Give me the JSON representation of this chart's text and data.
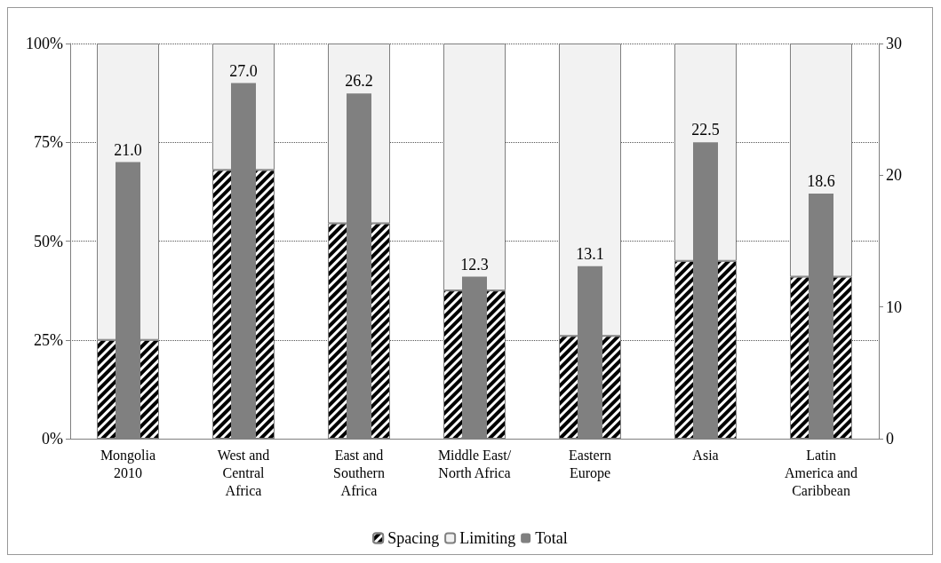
{
  "chart_data": {
    "type": "bar",
    "stacked": true,
    "categories": [
      "Mongolia\n2010",
      "West and\nCentral\nAfrica",
      "East and\nSouthern\nAfrica",
      "Middle East/\nNorth Africa",
      "Eastern\nEurope",
      "Asia",
      "Latin\nAmerica and\nCaribbean"
    ],
    "series": [
      {
        "name": "Spacing",
        "color": "#000000",
        "values": [
          25,
          68,
          54.5,
          37.5,
          26,
          45,
          41
        ]
      },
      {
        "name": "Limiting",
        "color": "#f2f2f2",
        "values": [
          75,
          32,
          45.5,
          62.5,
          74,
          55,
          59
        ]
      },
      {
        "name": "Total",
        "color": "#808080",
        "axis": "y2",
        "values": [
          21.0,
          27.0,
          26.2,
          12.3,
          13.1,
          22.5,
          18.6
        ],
        "value_labels": [
          "21.0",
          "27.0",
          "26.2",
          "12.3",
          "13.1",
          "22.5",
          "18.6"
        ]
      }
    ],
    "ylim": [
      0,
      100
    ],
    "yticks": [
      {
        "value": 0,
        "label": "0%"
      },
      {
        "value": 25,
        "label": "25%"
      },
      {
        "value": 50,
        "label": "50%"
      },
      {
        "value": 75,
        "label": "75%"
      },
      {
        "value": 100,
        "label": "100%"
      }
    ],
    "y2lim": [
      0,
      30
    ],
    "y2ticks": [
      0,
      10,
      20,
      30
    ],
    "grid": "y",
    "legend": "bottom"
  }
}
